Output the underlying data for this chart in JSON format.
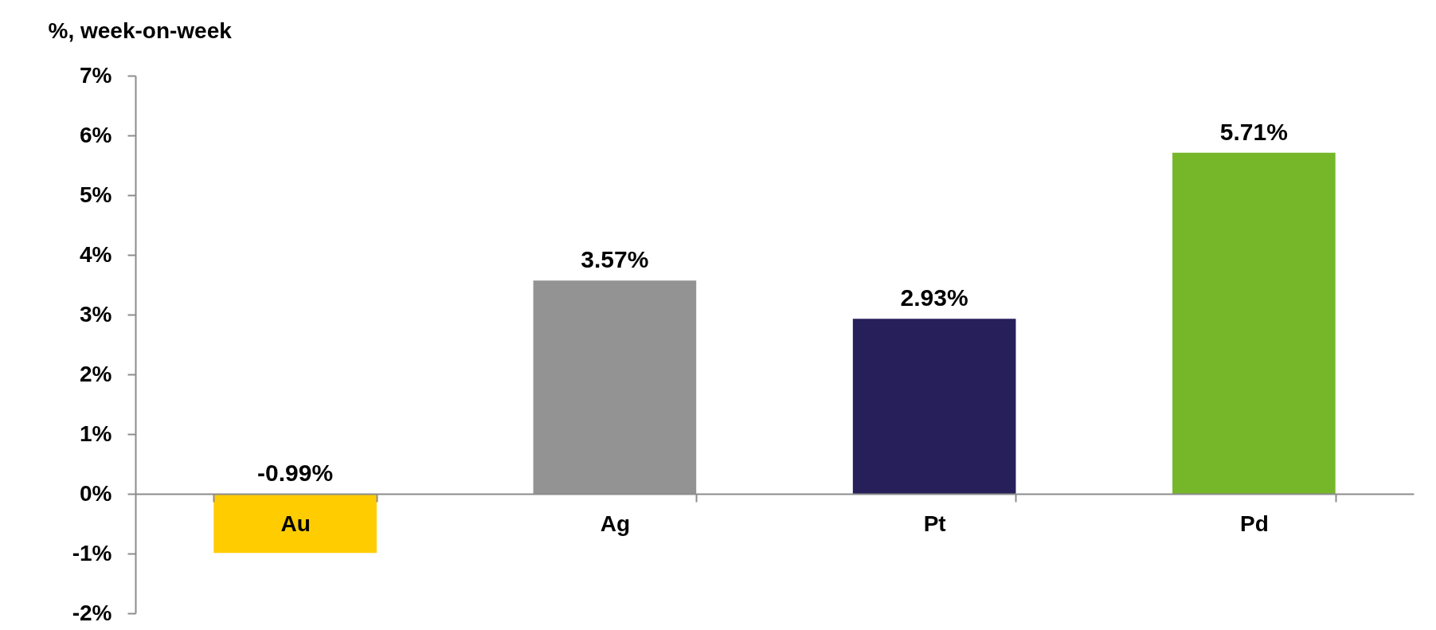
{
  "chart_data": {
    "type": "bar",
    "ylabel": "%, week-on-week",
    "categories": [
      "Au",
      "Ag",
      "Pt",
      "Pd"
    ],
    "values": [
      -0.99,
      3.57,
      2.93,
      5.71
    ],
    "colors": [
      "#ffcc00",
      "#939393",
      "#261f5a",
      "#76b72a"
    ],
    "value_labels": [
      "-0.99%",
      "3.57%",
      "2.93%",
      "5.71%"
    ],
    "ylim": [
      -2,
      7
    ],
    "yticks": [
      {
        "value": -2,
        "label": "-2%"
      },
      {
        "value": -1,
        "label": "-1%"
      },
      {
        "value": 0,
        "label": "0%"
      },
      {
        "value": 1,
        "label": "1%"
      },
      {
        "value": 2,
        "label": "2%"
      },
      {
        "value": 3,
        "label": "3%"
      },
      {
        "value": 4,
        "label": "4%"
      },
      {
        "value": 5,
        "label": "5%"
      },
      {
        "value": 6,
        "label": "6%"
      },
      {
        "value": 7,
        "label": "7%"
      }
    ],
    "grid": false,
    "legend": false
  }
}
